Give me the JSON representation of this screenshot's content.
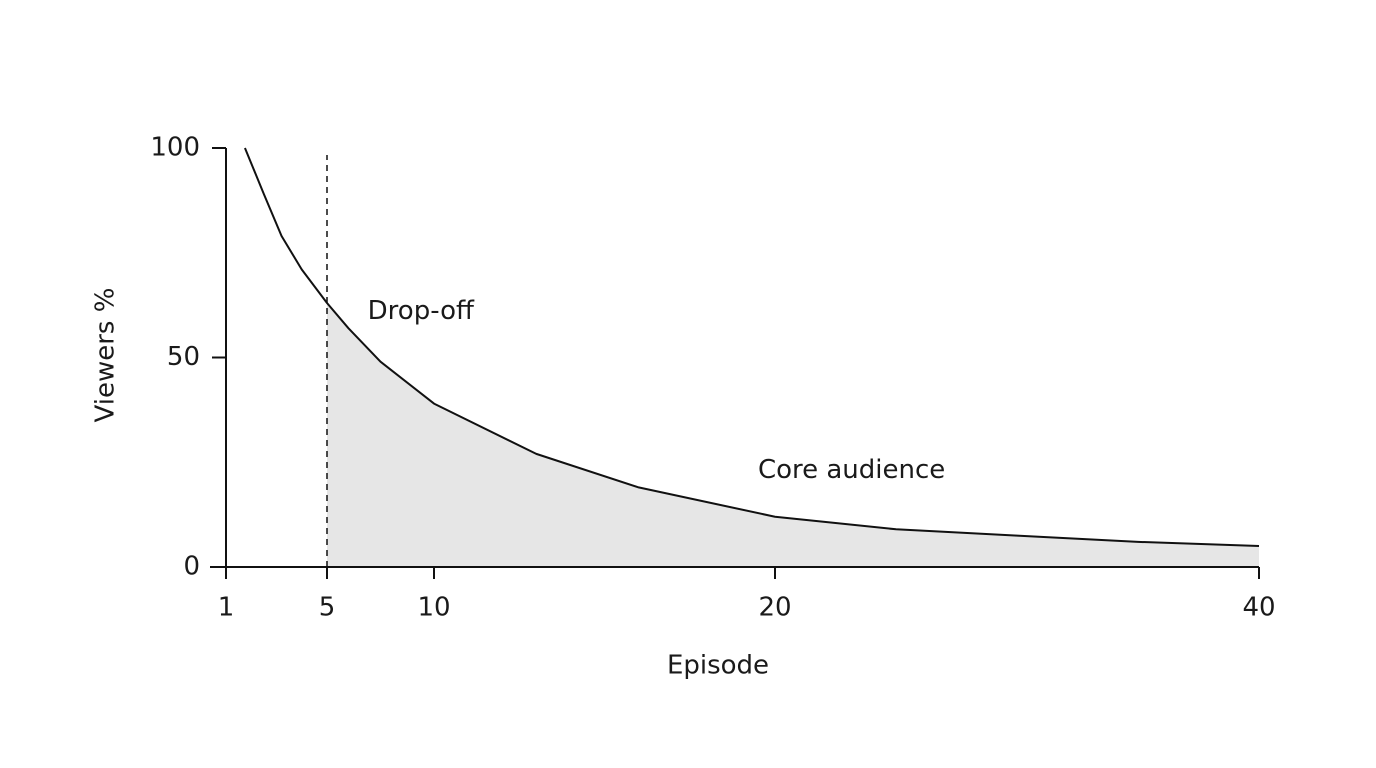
{
  "chart_data": {
    "type": "line",
    "x_label": "Episode",
    "y_label": "Viewers %",
    "x": [
      1.75,
      2.5,
      3.2,
      4,
      5,
      6,
      7.5,
      10,
      13,
      16,
      20,
      25,
      30,
      35,
      40
    ],
    "series": [
      {
        "name": "Viewers",
        "color": "#111111",
        "values": [
          100,
          89,
          79,
          71,
          63,
          57,
          49,
          39,
          27,
          19,
          12,
          9,
          7.5,
          6,
          5
        ]
      }
    ],
    "shade_from": 5,
    "shade_color": "#e6e6e6",
    "xlim": [
      1,
      40
    ],
    "xticks": [
      1,
      5,
      10,
      20,
      40
    ],
    "ylim": [
      0,
      100
    ],
    "yticks": [
      0,
      50,
      100
    ],
    "annotations": [
      {
        "text": "Drop-off",
        "x": 6.9,
        "y": 61
      },
      {
        "text": "Core audience",
        "x": 19.5,
        "y": 23
      }
    ]
  }
}
